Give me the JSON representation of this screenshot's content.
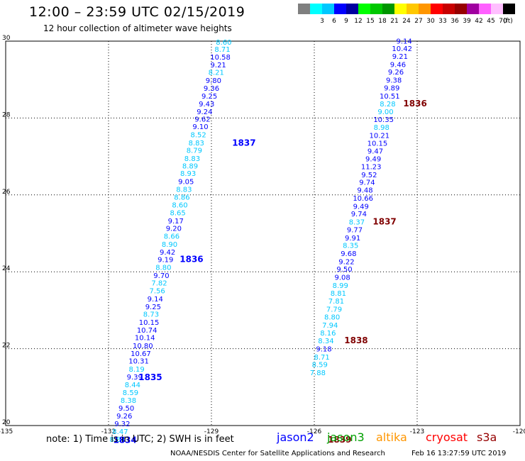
{
  "header": {
    "title": "12:00 – 23:59 UTC 02/15/2019",
    "subtitle": "12 hour collection of altimeter wave heights"
  },
  "legend": {
    "unit": "(ft)",
    "bins": [
      {
        "color": "#7f7f7f",
        "label": ""
      },
      {
        "color": "#00ffff",
        "label": "3"
      },
      {
        "color": "#00c8ff",
        "label": "6"
      },
      {
        "color": "#0000ff",
        "label": "9"
      },
      {
        "color": "#0000a0",
        "label": "12"
      },
      {
        "color": "#00ff00",
        "label": "15"
      },
      {
        "color": "#00c800",
        "label": "18"
      },
      {
        "color": "#009600",
        "label": "21"
      },
      {
        "color": "#ffff00",
        "label": "24"
      },
      {
        "color": "#ffc800",
        "label": "27"
      },
      {
        "color": "#ff9600",
        "label": "30"
      },
      {
        "color": "#ff0000",
        "label": "33"
      },
      {
        "color": "#c80000",
        "label": "36"
      },
      {
        "color": "#960000",
        "label": "39"
      },
      {
        "color": "#a000a0",
        "label": "42"
      },
      {
        "color": "#ff60ff",
        "label": "45"
      },
      {
        "color": "#ffbfff",
        "label": "70"
      },
      {
        "color": "#000000",
        "label": ""
      }
    ]
  },
  "axes": {
    "x_ticks": [
      "-135",
      "-132",
      "-129",
      "-126",
      "-123",
      "-120"
    ],
    "y_ticks": [
      "20",
      "22",
      "24",
      "26",
      "28",
      "30"
    ]
  },
  "colors": {
    "light": "#00c8ff",
    "blue": "#0000ff",
    "navy": "#0000a0",
    "maroon": "#800000"
  },
  "tracks": [
    {
      "name": "track-west",
      "points": [
        {
          "lon": -128.64,
          "lat": 29.91,
          "v": "8.60",
          "c": "light"
        },
        {
          "lon": -128.68,
          "lat": 29.72,
          "v": "8.71",
          "c": "light"
        },
        {
          "lon": -128.74,
          "lat": 29.52,
          "v": "10.58",
          "c": "blue"
        },
        {
          "lon": -128.8,
          "lat": 29.32,
          "v": "9.21",
          "c": "blue"
        },
        {
          "lon": -128.86,
          "lat": 29.12,
          "v": "8.21",
          "c": "light"
        },
        {
          "lon": -128.94,
          "lat": 28.91,
          "v": "9.80",
          "c": "blue"
        },
        {
          "lon": -129.0,
          "lat": 28.71,
          "v": "9.36",
          "c": "blue"
        },
        {
          "lon": -129.06,
          "lat": 28.51,
          "v": "9.25",
          "c": "blue"
        },
        {
          "lon": -129.14,
          "lat": 28.3,
          "v": "9.43",
          "c": "blue"
        },
        {
          "lon": -129.2,
          "lat": 28.1,
          "v": "9.24",
          "c": "blue"
        },
        {
          "lon": -129.26,
          "lat": 27.91,
          "v": "9.62",
          "c": "blue"
        },
        {
          "lon": -129.32,
          "lat": 27.71,
          "v": "9.10",
          "c": "blue"
        },
        {
          "lon": -129.38,
          "lat": 27.5,
          "v": "8.52",
          "c": "light"
        },
        {
          "lon": -129.44,
          "lat": 27.29,
          "v": "8.83",
          "c": "light"
        },
        {
          "lon": -129.5,
          "lat": 27.09,
          "v": "8.79",
          "c": "light"
        },
        {
          "lon": -129.56,
          "lat": 26.88,
          "v": "8.83",
          "c": "light"
        },
        {
          "lon": -129.62,
          "lat": 26.69,
          "v": "8.89",
          "c": "light"
        },
        {
          "lon": -129.68,
          "lat": 26.49,
          "v": "8.93",
          "c": "light"
        },
        {
          "lon": -129.74,
          "lat": 26.28,
          "v": "9.05",
          "c": "blue"
        },
        {
          "lon": -129.8,
          "lat": 26.08,
          "v": "8.83",
          "c": "light"
        },
        {
          "lon": -129.86,
          "lat": 25.88,
          "v": "8.86",
          "c": "light"
        },
        {
          "lon": -129.92,
          "lat": 25.67,
          "v": "8.60",
          "c": "light"
        },
        {
          "lon": -129.98,
          "lat": 25.47,
          "v": "8.65",
          "c": "light"
        },
        {
          "lon": -130.04,
          "lat": 25.26,
          "v": "9.17",
          "c": "blue"
        },
        {
          "lon": -130.1,
          "lat": 25.06,
          "v": "9.20",
          "c": "blue"
        },
        {
          "lon": -130.16,
          "lat": 24.86,
          "v": "8.66",
          "c": "light"
        },
        {
          "lon": -130.22,
          "lat": 24.65,
          "v": "8.90",
          "c": "light"
        },
        {
          "lon": -130.28,
          "lat": 24.45,
          "v": "9.42",
          "c": "blue"
        },
        {
          "lon": -130.34,
          "lat": 24.25,
          "v": "9.19",
          "c": "blue"
        },
        {
          "lon": -130.4,
          "lat": 24.05,
          "v": "8.80",
          "c": "light"
        },
        {
          "lon": -130.46,
          "lat": 23.84,
          "v": "9.70",
          "c": "blue"
        },
        {
          "lon": -130.52,
          "lat": 23.64,
          "v": "7.82",
          "c": "light"
        },
        {
          "lon": -130.58,
          "lat": 23.44,
          "v": "7.56",
          "c": "light"
        },
        {
          "lon": -130.64,
          "lat": 23.23,
          "v": "9.14",
          "c": "blue"
        },
        {
          "lon": -130.7,
          "lat": 23.03,
          "v": "9.25",
          "c": "blue"
        },
        {
          "lon": -130.76,
          "lat": 22.83,
          "v": "8.73",
          "c": "light"
        },
        {
          "lon": -130.82,
          "lat": 22.62,
          "v": "10.15",
          "c": "blue"
        },
        {
          "lon": -130.88,
          "lat": 22.42,
          "v": "10.74",
          "c": "blue"
        },
        {
          "lon": -130.94,
          "lat": 22.22,
          "v": "10.14",
          "c": "blue"
        },
        {
          "lon": -131.0,
          "lat": 22.01,
          "v": "10.80",
          "c": "blue"
        },
        {
          "lon": -131.06,
          "lat": 21.81,
          "v": "10.67",
          "c": "blue"
        },
        {
          "lon": -131.12,
          "lat": 21.61,
          "v": "10.31",
          "c": "blue"
        },
        {
          "lon": -131.18,
          "lat": 21.4,
          "v": "8.19",
          "c": "light"
        },
        {
          "lon": -131.24,
          "lat": 21.2,
          "v": "9.39",
          "c": "blue"
        },
        {
          "lon": -131.3,
          "lat": 21.0,
          "v": "8.44",
          "c": "light"
        },
        {
          "lon": -131.36,
          "lat": 20.79,
          "v": "8.59",
          "c": "light"
        },
        {
          "lon": -131.42,
          "lat": 20.59,
          "v": "8.38",
          "c": "light"
        },
        {
          "lon": -131.48,
          "lat": 20.39,
          "v": "9.50",
          "c": "blue"
        },
        {
          "lon": -131.54,
          "lat": 20.18,
          "v": "9.26",
          "c": "blue"
        },
        {
          "lon": -131.6,
          "lat": 19.98,
          "v": "9.32",
          "c": "blue"
        },
        {
          "lon": -131.66,
          "lat": 19.78,
          "v": "8.47",
          "c": "light"
        },
        {
          "lon": -131.74,
          "lat": 19.58,
          "v": "8.84",
          "c": "light"
        }
      ],
      "times": [
        {
          "lon": -128.05,
          "lat": 27.28,
          "v": "1837",
          "c": "blue"
        },
        {
          "lon": -129.58,
          "lat": 24.25,
          "v": "1836",
          "c": "blue"
        },
        {
          "lon": -130.78,
          "lat": 21.18,
          "v": "1835",
          "c": "blue"
        },
        {
          "lon": -131.52,
          "lat": 19.55,
          "v": "1834",
          "c": "blue"
        }
      ]
    },
    {
      "name": "track-east",
      "points": [
        {
          "lon": -123.38,
          "lat": 29.94,
          "v": "9.14",
          "c": "blue"
        },
        {
          "lon": -123.44,
          "lat": 29.74,
          "v": "10.42",
          "c": "blue"
        },
        {
          "lon": -123.5,
          "lat": 29.54,
          "v": "9.21",
          "c": "blue"
        },
        {
          "lon": -123.56,
          "lat": 29.33,
          "v": "9.46",
          "c": "blue"
        },
        {
          "lon": -123.62,
          "lat": 29.13,
          "v": "9.26",
          "c": "blue"
        },
        {
          "lon": -123.68,
          "lat": 28.92,
          "v": "9.38",
          "c": "blue"
        },
        {
          "lon": -123.74,
          "lat": 28.72,
          "v": "9.89",
          "c": "blue"
        },
        {
          "lon": -123.8,
          "lat": 28.51,
          "v": "10.51",
          "c": "blue"
        },
        {
          "lon": -123.86,
          "lat": 28.3,
          "v": "8.28",
          "c": "light"
        },
        {
          "lon": -123.92,
          "lat": 28.1,
          "v": "9.00",
          "c": "light"
        },
        {
          "lon": -123.98,
          "lat": 27.9,
          "v": "10.35",
          "c": "blue"
        },
        {
          "lon": -124.04,
          "lat": 27.69,
          "v": "8.98",
          "c": "light"
        },
        {
          "lon": -124.1,
          "lat": 27.48,
          "v": "10.21",
          "c": "blue"
        },
        {
          "lon": -124.16,
          "lat": 27.28,
          "v": "10.15",
          "c": "blue"
        },
        {
          "lon": -124.22,
          "lat": 27.08,
          "v": "9.47",
          "c": "blue"
        },
        {
          "lon": -124.28,
          "lat": 26.87,
          "v": "9.49",
          "c": "blue"
        },
        {
          "lon": -124.34,
          "lat": 26.67,
          "v": "11.23",
          "c": "blue"
        },
        {
          "lon": -124.4,
          "lat": 26.46,
          "v": "9.52",
          "c": "blue"
        },
        {
          "lon": -124.46,
          "lat": 26.26,
          "v": "9.74",
          "c": "blue"
        },
        {
          "lon": -124.52,
          "lat": 26.06,
          "v": "9.48",
          "c": "blue"
        },
        {
          "lon": -124.58,
          "lat": 25.85,
          "v": "10.66",
          "c": "blue"
        },
        {
          "lon": -124.64,
          "lat": 25.64,
          "v": "9.49",
          "c": "blue"
        },
        {
          "lon": -124.7,
          "lat": 25.44,
          "v": "9.74",
          "c": "blue"
        },
        {
          "lon": -124.76,
          "lat": 25.23,
          "v": "8.37",
          "c": "light"
        },
        {
          "lon": -124.82,
          "lat": 25.03,
          "v": "9.77",
          "c": "blue"
        },
        {
          "lon": -124.88,
          "lat": 24.82,
          "v": "9.91",
          "c": "blue"
        },
        {
          "lon": -124.94,
          "lat": 24.62,
          "v": "8.35",
          "c": "light"
        },
        {
          "lon": -125.0,
          "lat": 24.41,
          "v": "9.68",
          "c": "blue"
        },
        {
          "lon": -125.06,
          "lat": 24.2,
          "v": "9.22",
          "c": "blue"
        },
        {
          "lon": -125.12,
          "lat": 24.0,
          "v": "9.50",
          "c": "blue"
        },
        {
          "lon": -125.18,
          "lat": 23.79,
          "v": "9.08",
          "c": "blue"
        },
        {
          "lon": -125.24,
          "lat": 23.58,
          "v": "8.99",
          "c": "light"
        },
        {
          "lon": -125.3,
          "lat": 23.38,
          "v": "8.81",
          "c": "light"
        },
        {
          "lon": -125.36,
          "lat": 23.17,
          "v": "7.81",
          "c": "light"
        },
        {
          "lon": -125.42,
          "lat": 22.96,
          "v": "7.79",
          "c": "light"
        },
        {
          "lon": -125.48,
          "lat": 22.76,
          "v": "8.80",
          "c": "light"
        },
        {
          "lon": -125.54,
          "lat": 22.55,
          "v": "7.94",
          "c": "light"
        },
        {
          "lon": -125.6,
          "lat": 22.34,
          "v": "8.16",
          "c": "light"
        },
        {
          "lon": -125.66,
          "lat": 22.14,
          "v": "8.34",
          "c": "light"
        },
        {
          "lon": -125.72,
          "lat": 21.93,
          "v": "9.18",
          "c": "blue"
        },
        {
          "lon": -125.78,
          "lat": 21.72,
          "v": "8.71",
          "c": "light"
        },
        {
          "lon": -125.84,
          "lat": 21.52,
          "v": "8.59",
          "c": "light"
        },
        {
          "lon": -125.9,
          "lat": 21.31,
          "v": "7.88",
          "c": "light"
        }
      ],
      "times": [
        {
          "lon": -123.06,
          "lat": 28.3,
          "v": "1836",
          "c": "maroon"
        },
        {
          "lon": -123.95,
          "lat": 25.23,
          "v": "1837",
          "c": "maroon"
        },
        {
          "lon": -124.78,
          "lat": 22.14,
          "v": "1838",
          "c": "maroon"
        },
        {
          "lon": -125.26,
          "lat": 19.56,
          "v": "1839",
          "c": "maroon"
        }
      ]
    }
  ],
  "footer": {
    "note": "note:  1) Time is in UTC;  2) SWH is in feet",
    "satellites": [
      {
        "name": "jason2",
        "color": "#0000ff"
      },
      {
        "name": "jason3",
        "color": "#00a000"
      },
      {
        "name": "altika",
        "color": "#ff9600"
      },
      {
        "name": "cryosat",
        "color": "#ff0000"
      },
      {
        "name": "s3a",
        "color": "#960000"
      }
    ],
    "credit": "NOAA/NESDIS Center for Satellite Applications and Research",
    "timestamp": "Feb 16 13:27:59 UTC 2019"
  }
}
